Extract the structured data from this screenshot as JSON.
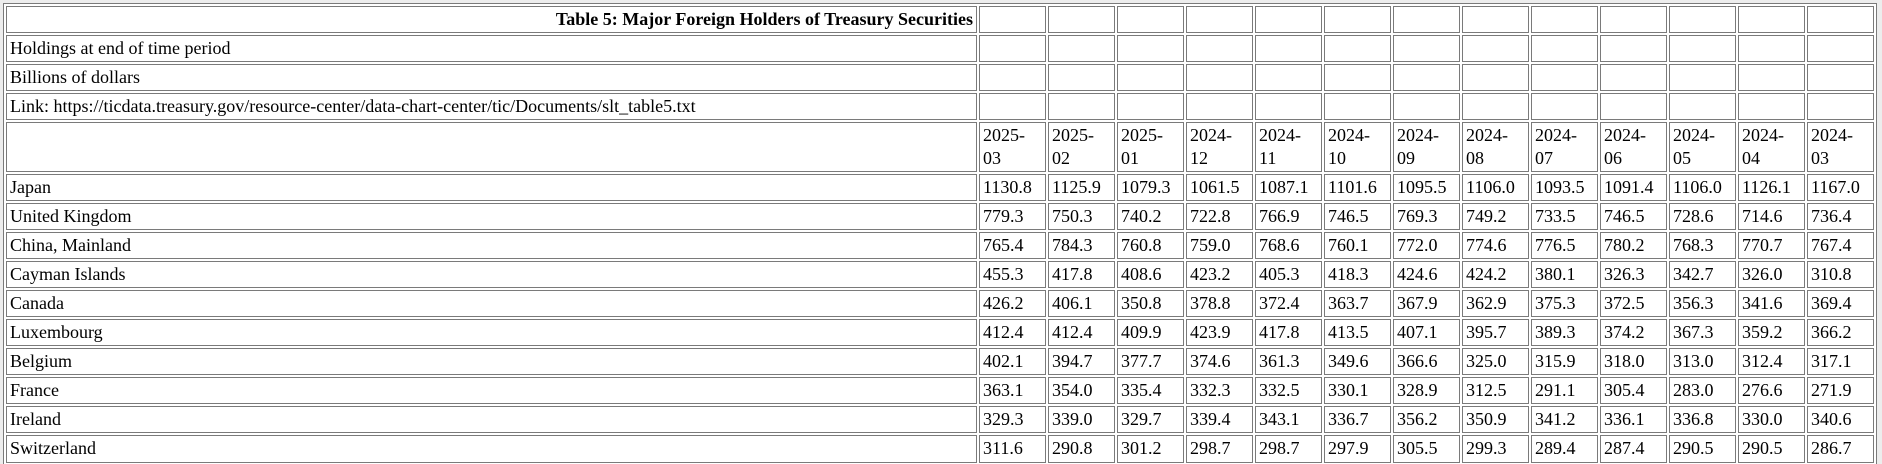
{
  "page": {
    "background_color": "#ededed",
    "cell_background_color": "#ffffff",
    "border_color": "#7a7a7a",
    "text_color": "#000000"
  },
  "chart_data": {
    "type": "table",
    "title": "Table 5: Major Foreign Holders of Treasury Securities",
    "subtitle": "Holdings at end of time period",
    "units": "Billions of dollars",
    "link_line": "Link: https://ticdata.treasury.gov/resource-center/data-chart-center/tic/Documents/slt_table5.txt",
    "columns": [
      "2025-03",
      "2025-02",
      "2025-01",
      "2024-12",
      "2024-11",
      "2024-10",
      "2024-09",
      "2024-08",
      "2024-07",
      "2024-06",
      "2024-05",
      "2024-04",
      "2024-03"
    ],
    "rows": [
      {
        "label": "Japan",
        "values": [
          "1130.8",
          "1125.9",
          "1079.3",
          "1061.5",
          "1087.1",
          "1101.6",
          "1095.5",
          "1106.0",
          "1093.5",
          "1091.4",
          "1106.0",
          "1126.1",
          "1167.0"
        ]
      },
      {
        "label": "United Kingdom",
        "values": [
          "779.3",
          "750.3",
          "740.2",
          "722.8",
          "766.9",
          "746.5",
          "769.3",
          "749.2",
          "733.5",
          "746.5",
          "728.6",
          "714.6",
          "736.4"
        ]
      },
      {
        "label": "China, Mainland",
        "values": [
          "765.4",
          "784.3",
          "760.8",
          "759.0",
          "768.6",
          "760.1",
          "772.0",
          "774.6",
          "776.5",
          "780.2",
          "768.3",
          "770.7",
          "767.4"
        ]
      },
      {
        "label": "Cayman Islands",
        "values": [
          "455.3",
          "417.8",
          "408.6",
          "423.2",
          "405.3",
          "418.3",
          "424.6",
          "424.2",
          "380.1",
          "326.3",
          "342.7",
          "326.0",
          "310.8"
        ]
      },
      {
        "label": "Canada",
        "values": [
          "426.2",
          "406.1",
          "350.8",
          "378.8",
          "372.4",
          "363.7",
          "367.9",
          "362.9",
          "375.3",
          "372.5",
          "356.3",
          "341.6",
          "369.4"
        ]
      },
      {
        "label": "Luxembourg",
        "values": [
          "412.4",
          "412.4",
          "409.9",
          "423.9",
          "417.8",
          "413.5",
          "407.1",
          "395.7",
          "389.3",
          "374.2",
          "367.3",
          "359.2",
          "366.2"
        ]
      },
      {
        "label": "Belgium",
        "values": [
          "402.1",
          "394.7",
          "377.7",
          "374.6",
          "361.3",
          "349.6",
          "366.6",
          "325.0",
          "315.9",
          "318.0",
          "313.0",
          "312.4",
          "317.1"
        ]
      },
      {
        "label": "France",
        "values": [
          "363.1",
          "354.0",
          "335.4",
          "332.3",
          "332.5",
          "330.1",
          "328.9",
          "312.5",
          "291.1",
          "305.4",
          "283.0",
          "276.6",
          "271.9"
        ]
      },
      {
        "label": "Ireland",
        "values": [
          "329.3",
          "339.0",
          "329.7",
          "339.4",
          "343.1",
          "336.7",
          "356.2",
          "350.9",
          "341.2",
          "336.1",
          "336.8",
          "330.0",
          "340.6"
        ]
      },
      {
        "label": "Switzerland",
        "values": [
          "311.6",
          "290.8",
          "301.2",
          "298.7",
          "298.7",
          "297.9",
          "305.5",
          "299.3",
          "289.4",
          "287.4",
          "290.5",
          "290.5",
          "286.7"
        ]
      }
    ]
  }
}
